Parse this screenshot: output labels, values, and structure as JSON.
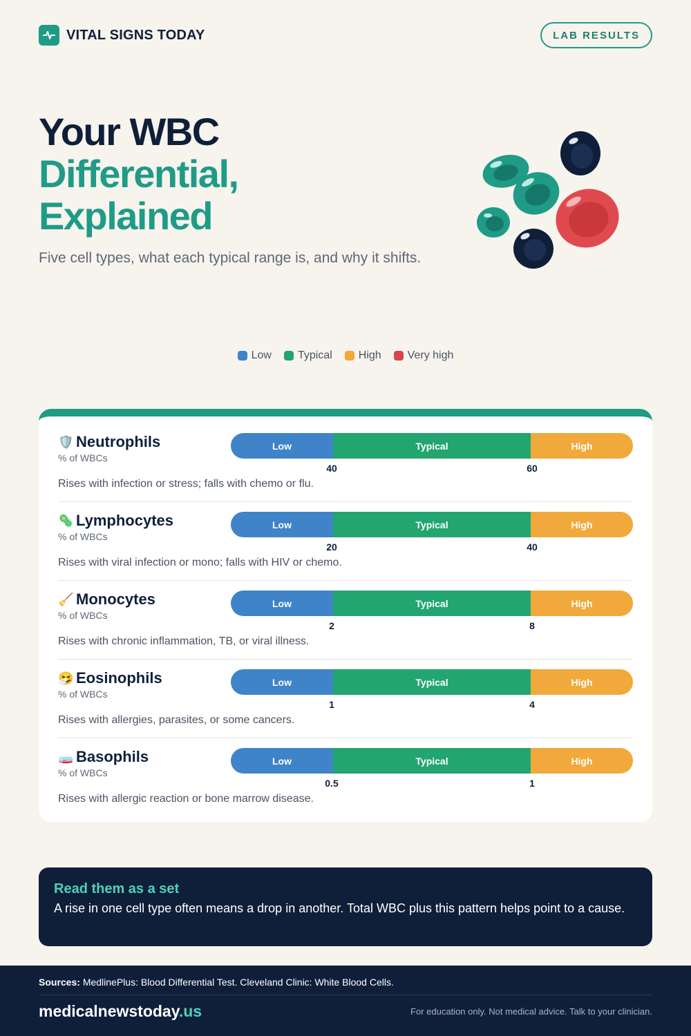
{
  "header": {
    "brand_name": "VITAL SIGNS TODAY",
    "brand_icon": "pulse-icon",
    "badge_label": "LAB RESULTS"
  },
  "hero": {
    "title_line1": "Your WBC",
    "title_line2": "Differential,",
    "title_line3": "Explained",
    "subtitle": "Five cell types, what each typical range is, and why it shifts."
  },
  "legend": [
    {
      "label": "Low",
      "color": "#3f84c8"
    },
    {
      "label": "Typical",
      "color": "#22a56f"
    },
    {
      "label": "High",
      "color": "#f0a93a"
    },
    {
      "label": "Very high",
      "color": "#d9434a"
    }
  ],
  "segments": {
    "low": "Low",
    "typical": "Typical",
    "high": "High"
  },
  "cells": [
    {
      "name": "Neutrophils",
      "emoji": "🛡️",
      "unit": "% of WBCs",
      "low_cut": "40",
      "high_cut": "60",
      "note": "Rises with infection or stress; falls with chemo or flu."
    },
    {
      "name": "Lymphocytes",
      "emoji": "🦠",
      "unit": "% of WBCs",
      "low_cut": "20",
      "high_cut": "40",
      "note": "Rises with viral infection or mono; falls with HIV or chemo."
    },
    {
      "name": "Monocytes",
      "emoji": "🧹",
      "unit": "% of WBCs",
      "low_cut": "2",
      "high_cut": "8",
      "note": "Rises with chronic inflammation, TB, or viral illness."
    },
    {
      "name": "Eosinophils",
      "emoji": "🤧",
      "unit": "% of WBCs",
      "low_cut": "1",
      "high_cut": "4",
      "note": "Rises with allergies, parasites, or some cancers."
    },
    {
      "name": "Basophils",
      "emoji": "🧫",
      "unit": "% of WBCs",
      "low_cut": "0.5",
      "high_cut": "1",
      "note": "Rises with allergic reaction or bone marrow disease."
    }
  ],
  "callout": {
    "title": "Read them as a set",
    "text": "A rise in one cell type often means a drop in another. Total WBC plus this pattern helps point to a cause."
  },
  "footer": {
    "sources_label": "Sources:",
    "sources_text": "MedlinePlus: Blood Differential Test. Cleveland Clinic: White Blood Cells.",
    "site_name": "medicalnewstoday",
    "site_tld": ".us",
    "disclaimer": "For education only. Not medical advice. Talk to your clinician."
  }
}
